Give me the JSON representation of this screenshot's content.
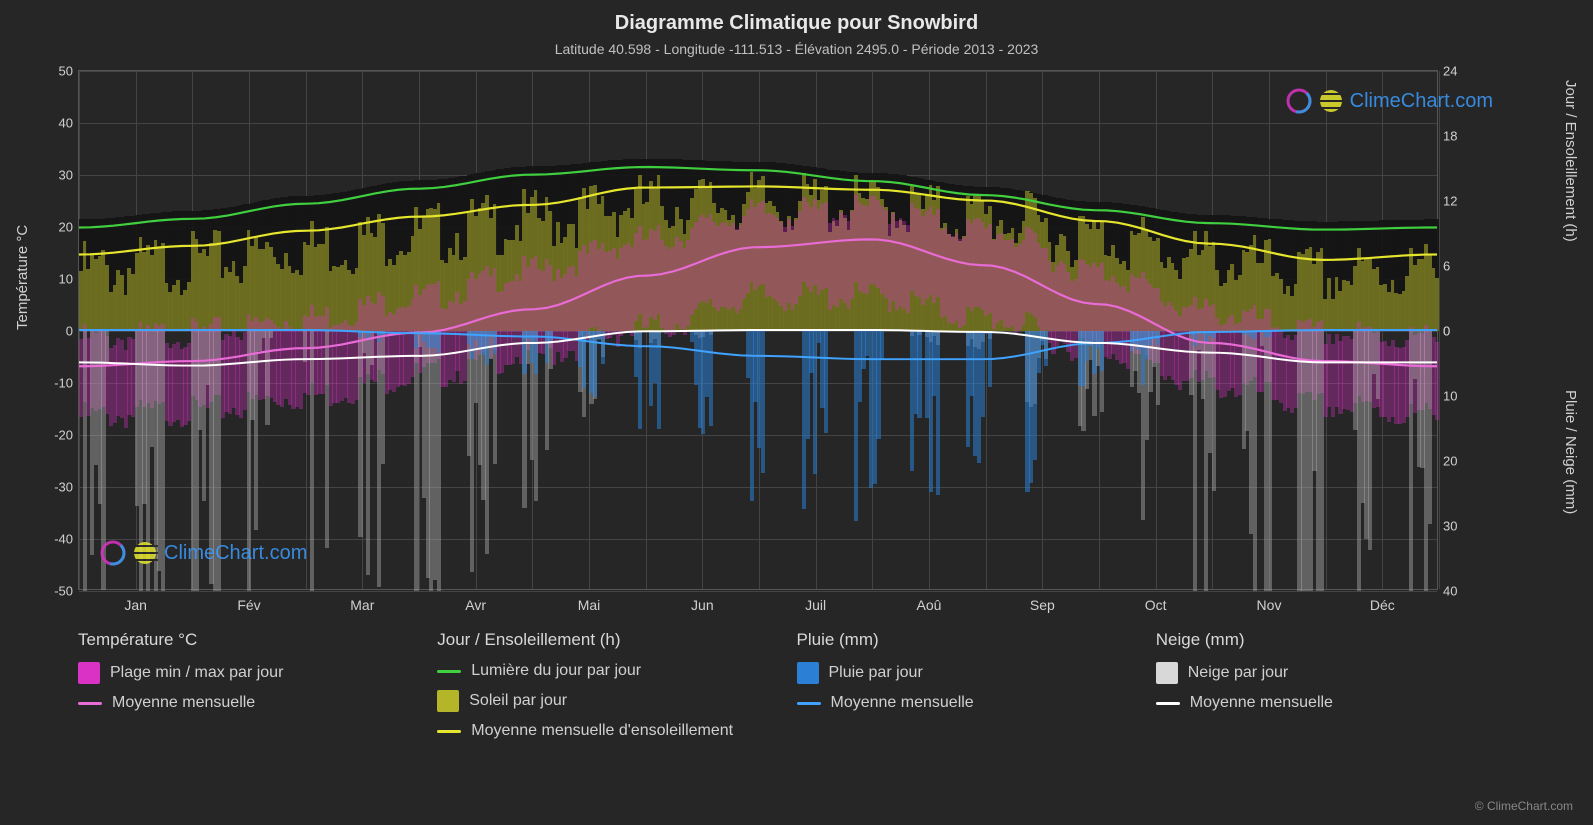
{
  "title": "Diagramme Climatique pour Snowbird",
  "subtitle": "Latitude 40.598 - Longitude -111.513 - Élévation 2495.0 - Période 2013 - 2023",
  "axis_left_label": "Température °C",
  "axis_right1_label": "Jour / Ensoleillement (h)",
  "axis_right2_label": "Pluie / Neige (mm)",
  "left_ticks": [
    50,
    40,
    30,
    20,
    10,
    0,
    -10,
    -20,
    -30,
    -40,
    -50
  ],
  "right_ticks_top": [
    24,
    18,
    12,
    6,
    0
  ],
  "right_ticks_bottom": [
    0,
    10,
    20,
    30,
    40
  ],
  "months": [
    "Jan",
    "Fév",
    "Mar",
    "Avr",
    "Mai",
    "Jun",
    "Juil",
    "Aoû",
    "Sep",
    "Oct",
    "Nov",
    "Déc"
  ],
  "ylim": [
    -50,
    50
  ],
  "ylim_hours": [
    0,
    24
  ],
  "ylim_precip": [
    0,
    40
  ],
  "grid_color": "#444444",
  "background_color": "#262626",
  "series": {
    "daylight": {
      "color": "#3fcf3f",
      "values": [
        9.5,
        10.3,
        11.7,
        13.1,
        14.4,
        15.1,
        14.8,
        13.8,
        12.5,
        11.1,
        9.9,
        9.3
      ]
    },
    "sun_avg": {
      "color": "#e6e62e",
      "values": [
        7.0,
        7.8,
        9.2,
        10.5,
        11.6,
        13.2,
        13.3,
        13.0,
        12.0,
        10.1,
        8.0,
        6.5
      ]
    },
    "temp_avg": {
      "color": "#e86bd6",
      "values": [
        -7.0,
        -6.0,
        -3.5,
        -0.5,
        4.0,
        10.5,
        16.0,
        17.5,
        12.5,
        5.0,
        -2.5,
        -6.0
      ]
    },
    "temp_min": {
      "color": "#d932c4",
      "values": [
        -15,
        -14,
        -11,
        -7,
        -3,
        2,
        8,
        8,
        4,
        -2,
        -9,
        -13
      ]
    },
    "temp_max": {
      "color": "#d932c4",
      "values": [
        0,
        1,
        4,
        8,
        13,
        19,
        24,
        25,
        21,
        13,
        5,
        1
      ]
    },
    "temp_range_fill": "#d932c4",
    "rain_avg": {
      "color": "#3fa3ff",
      "values": [
        0,
        0,
        0,
        0.5,
        1.0,
        2.5,
        4.0,
        4.5,
        4.5,
        2.0,
        0.3,
        0
      ]
    },
    "snow_avg": {
      "color": "#ffffff",
      "values": [
        5.0,
        5.5,
        4.5,
        4.0,
        2.0,
        0.2,
        0,
        0,
        0.3,
        2.0,
        3.5,
        5.0
      ]
    },
    "sun_bars": {
      "color": "#b5b52a",
      "opacity": 0.55
    },
    "temp_bars": {
      "color": "#d932c4",
      "opacity": 0.35
    },
    "rain_bars": {
      "color": "#2b7fd4",
      "opacity": 0.55
    },
    "snow_bars": {
      "color": "#aaaaaa",
      "opacity": 0.45
    }
  },
  "legend": {
    "g1_title": "Température °C",
    "g1_i1": "Plage min / max par jour",
    "g1_i2": "Moyenne mensuelle",
    "g2_title": "Jour / Ensoleillement (h)",
    "g2_i1": "Lumière du jour par jour",
    "g2_i2": "Soleil par jour",
    "g2_i3": "Moyenne mensuelle d'ensoleillement",
    "g3_title": "Pluie (mm)",
    "g3_i1": "Pluie par jour",
    "g3_i2": "Moyenne mensuelle",
    "g4_title": "Neige (mm)",
    "g4_i1": "Neige par jour",
    "g4_i2": "Moyenne mensuelle"
  },
  "colors": {
    "temp_box": "#d932c4",
    "temp_line": "#e86bd6",
    "daylight_line": "#3fcf3f",
    "sun_box": "#b5b52a",
    "sun_line": "#e6e62e",
    "rain_box": "#2b7fd4",
    "rain_line": "#3fa3ff",
    "snow_box": "#d8d8d8",
    "snow_line": "#ffffff"
  },
  "watermark_text": "ClimeChart.com",
  "copyright_text": "© ClimeChart.com"
}
